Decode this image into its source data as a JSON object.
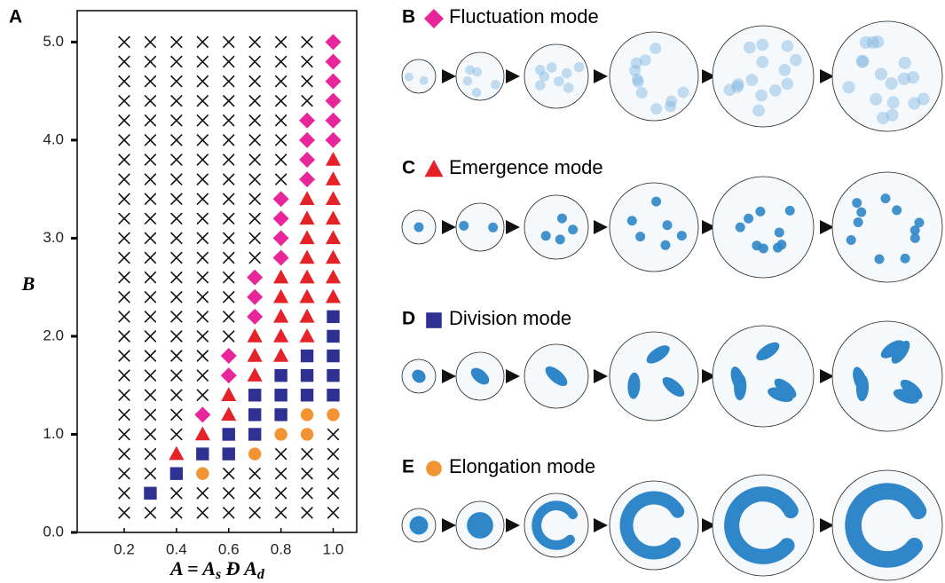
{
  "chart_data": {
    "type": "scatter",
    "panel_label": "A",
    "xlabel": [
      "A = A",
      "s",
      " Đ A",
      "d"
    ],
    "ylabel": "B",
    "xlim": [
      0.02,
      1.09
    ],
    "ylim": [
      0,
      5.32
    ],
    "xticks": [
      0.2,
      0.4,
      0.6,
      0.8,
      {
        "value": 1,
        "label": "1.0"
      }
    ],
    "yticks": [
      {
        "value": 0,
        "label": "0.0"
      },
      {
        "value": 1,
        "label": "1.0"
      },
      {
        "value": 2,
        "label": "2.0"
      },
      {
        "value": 3,
        "label": "3.0"
      },
      {
        "value": 4,
        "label": "4.0"
      },
      {
        "value": 5,
        "label": "5.0"
      }
    ],
    "series": [
      {
        "name": "Fluctuation mode",
        "marker": "diamond",
        "color": "#e8259a",
        "points": [
          [
            1.0,
            5.0
          ],
          [
            1.0,
            4.8
          ],
          [
            1.0,
            4.6
          ],
          [
            1.0,
            4.4
          ],
          [
            1.0,
            4.2
          ],
          [
            1.0,
            4.0
          ],
          [
            0.9,
            4.2
          ],
          [
            0.9,
            4.0
          ],
          [
            0.9,
            3.8
          ],
          [
            0.9,
            3.6
          ],
          [
            0.8,
            3.4
          ],
          [
            0.8,
            3.2
          ],
          [
            0.8,
            3.0
          ],
          [
            0.8,
            2.8
          ],
          [
            0.7,
            2.6
          ],
          [
            0.7,
            2.4
          ],
          [
            0.7,
            2.2
          ],
          [
            0.6,
            1.8
          ],
          [
            0.6,
            1.6
          ],
          [
            0.5,
            1.2
          ]
        ]
      },
      {
        "name": "Emergence mode",
        "marker": "triangle",
        "color": "#e52228",
        "points": [
          [
            1.0,
            3.8
          ],
          [
            1.0,
            3.6
          ],
          [
            1.0,
            3.4
          ],
          [
            1.0,
            3.2
          ],
          [
            1.0,
            3.0
          ],
          [
            1.0,
            2.8
          ],
          [
            1.0,
            2.6
          ],
          [
            1.0,
            2.4
          ],
          [
            0.9,
            3.4
          ],
          [
            0.9,
            3.2
          ],
          [
            0.9,
            3.0
          ],
          [
            0.9,
            2.8
          ],
          [
            0.9,
            2.6
          ],
          [
            0.9,
            2.4
          ],
          [
            0.9,
            2.2
          ],
          [
            0.9,
            2.0
          ],
          [
            0.8,
            2.6
          ],
          [
            0.8,
            2.4
          ],
          [
            0.8,
            2.2
          ],
          [
            0.8,
            2.0
          ],
          [
            0.8,
            1.8
          ],
          [
            0.7,
            2.0
          ],
          [
            0.7,
            1.8
          ],
          [
            0.7,
            1.6
          ],
          [
            0.6,
            1.4
          ],
          [
            0.6,
            1.2
          ],
          [
            0.5,
            1.0
          ],
          [
            0.4,
            0.8
          ]
        ]
      },
      {
        "name": "Division mode",
        "marker": "square",
        "color": "#2e3192",
        "points": [
          [
            1.0,
            2.2
          ],
          [
            1.0,
            2.0
          ],
          [
            1.0,
            1.8
          ],
          [
            1.0,
            1.6
          ],
          [
            1.0,
            1.4
          ],
          [
            0.9,
            1.8
          ],
          [
            0.9,
            1.6
          ],
          [
            0.9,
            1.4
          ],
          [
            0.8,
            1.6
          ],
          [
            0.8,
            1.4
          ],
          [
            0.8,
            1.2
          ],
          [
            0.7,
            1.4
          ],
          [
            0.7,
            1.2
          ],
          [
            0.7,
            1.0
          ],
          [
            0.6,
            1.0
          ],
          [
            0.6,
            0.8
          ],
          [
            0.5,
            0.8
          ],
          [
            0.4,
            0.6
          ],
          [
            0.3,
            0.4
          ]
        ]
      },
      {
        "name": "Elongation mode",
        "marker": "circle",
        "color": "#f39433",
        "points": [
          [
            1.0,
            1.2
          ],
          [
            0.9,
            1.2
          ],
          [
            0.9,
            1.0
          ],
          [
            0.8,
            1.0
          ],
          [
            0.7,
            0.8
          ],
          [
            0.5,
            0.6
          ]
        ]
      },
      {
        "marker": "x",
        "color": "#111111",
        "points": [
          [
            0.2,
            0.2
          ],
          [
            0.2,
            0.4
          ],
          [
            0.2,
            0.6
          ],
          [
            0.2,
            0.8
          ],
          [
            0.2,
            1.0
          ],
          [
            0.2,
            1.2
          ],
          [
            0.2,
            1.4
          ],
          [
            0.2,
            1.6
          ],
          [
            0.2,
            1.8
          ],
          [
            0.2,
            2.0
          ],
          [
            0.2,
            2.2
          ],
          [
            0.2,
            2.4
          ],
          [
            0.2,
            2.6
          ],
          [
            0.2,
            2.8
          ],
          [
            0.2,
            3.0
          ],
          [
            0.2,
            3.2
          ],
          [
            0.2,
            3.4
          ],
          [
            0.2,
            3.6
          ],
          [
            0.2,
            3.8
          ],
          [
            0.2,
            4.0
          ],
          [
            0.2,
            4.2
          ],
          [
            0.2,
            4.4
          ],
          [
            0.2,
            4.6
          ],
          [
            0.2,
            4.8
          ],
          [
            0.2,
            5.0
          ],
          [
            0.3,
            0.2
          ],
          [
            0.3,
            0.6
          ],
          [
            0.3,
            0.8
          ],
          [
            0.3,
            1.0
          ],
          [
            0.3,
            1.2
          ],
          [
            0.3,
            1.4
          ],
          [
            0.3,
            1.6
          ],
          [
            0.3,
            1.8
          ],
          [
            0.3,
            2.0
          ],
          [
            0.3,
            2.2
          ],
          [
            0.3,
            2.4
          ],
          [
            0.3,
            2.6
          ],
          [
            0.3,
            2.8
          ],
          [
            0.3,
            3.0
          ],
          [
            0.3,
            3.2
          ],
          [
            0.3,
            3.4
          ],
          [
            0.3,
            3.6
          ],
          [
            0.3,
            3.8
          ],
          [
            0.3,
            4.0
          ],
          [
            0.3,
            4.2
          ],
          [
            0.3,
            4.4
          ],
          [
            0.3,
            4.6
          ],
          [
            0.3,
            4.8
          ],
          [
            0.3,
            5.0
          ],
          [
            0.4,
            0.2
          ],
          [
            0.4,
            0.4
          ],
          [
            0.4,
            1.0
          ],
          [
            0.4,
            1.2
          ],
          [
            0.4,
            1.4
          ],
          [
            0.4,
            1.6
          ],
          [
            0.4,
            1.8
          ],
          [
            0.4,
            2.0
          ],
          [
            0.4,
            2.2
          ],
          [
            0.4,
            2.4
          ],
          [
            0.4,
            2.6
          ],
          [
            0.4,
            2.8
          ],
          [
            0.4,
            3.0
          ],
          [
            0.4,
            3.2
          ],
          [
            0.4,
            3.4
          ],
          [
            0.4,
            3.6
          ],
          [
            0.4,
            3.8
          ],
          [
            0.4,
            4.0
          ],
          [
            0.4,
            4.2
          ],
          [
            0.4,
            4.4
          ],
          [
            0.4,
            4.6
          ],
          [
            0.4,
            4.8
          ],
          [
            0.4,
            5.0
          ],
          [
            0.5,
            0.2
          ],
          [
            0.5,
            0.4
          ],
          [
            0.5,
            1.4
          ],
          [
            0.5,
            1.6
          ],
          [
            0.5,
            1.8
          ],
          [
            0.5,
            2.0
          ],
          [
            0.5,
            2.2
          ],
          [
            0.5,
            2.4
          ],
          [
            0.5,
            2.6
          ],
          [
            0.5,
            2.8
          ],
          [
            0.5,
            3.0
          ],
          [
            0.5,
            3.2
          ],
          [
            0.5,
            3.4
          ],
          [
            0.5,
            3.6
          ],
          [
            0.5,
            3.8
          ],
          [
            0.5,
            4.0
          ],
          [
            0.5,
            4.2
          ],
          [
            0.5,
            4.4
          ],
          [
            0.5,
            4.6
          ],
          [
            0.5,
            4.8
          ],
          [
            0.5,
            5.0
          ],
          [
            0.6,
            0.2
          ],
          [
            0.6,
            0.4
          ],
          [
            0.6,
            0.6
          ],
          [
            0.6,
            2.0
          ],
          [
            0.6,
            2.2
          ],
          [
            0.6,
            2.4
          ],
          [
            0.6,
            2.6
          ],
          [
            0.6,
            2.8
          ],
          [
            0.6,
            3.0
          ],
          [
            0.6,
            3.2
          ],
          [
            0.6,
            3.4
          ],
          [
            0.6,
            3.6
          ],
          [
            0.6,
            3.8
          ],
          [
            0.6,
            4.0
          ],
          [
            0.6,
            4.2
          ],
          [
            0.6,
            4.4
          ],
          [
            0.6,
            4.6
          ],
          [
            0.6,
            4.8
          ],
          [
            0.6,
            5.0
          ],
          [
            0.7,
            0.2
          ],
          [
            0.7,
            0.4
          ],
          [
            0.7,
            0.6
          ],
          [
            0.7,
            2.8
          ],
          [
            0.7,
            3.0
          ],
          [
            0.7,
            3.2
          ],
          [
            0.7,
            3.4
          ],
          [
            0.7,
            3.6
          ],
          [
            0.7,
            3.8
          ],
          [
            0.7,
            4.0
          ],
          [
            0.7,
            4.2
          ],
          [
            0.7,
            4.4
          ],
          [
            0.7,
            4.6
          ],
          [
            0.7,
            4.8
          ],
          [
            0.7,
            5.0
          ],
          [
            0.8,
            0.2
          ],
          [
            0.8,
            0.4
          ],
          [
            0.8,
            0.6
          ],
          [
            0.8,
            0.8
          ],
          [
            0.8,
            3.6
          ],
          [
            0.8,
            3.8
          ],
          [
            0.8,
            4.0
          ],
          [
            0.8,
            4.2
          ],
          [
            0.8,
            4.4
          ],
          [
            0.8,
            4.6
          ],
          [
            0.8,
            4.8
          ],
          [
            0.8,
            5.0
          ],
          [
            0.9,
            0.2
          ],
          [
            0.9,
            0.4
          ],
          [
            0.9,
            0.6
          ],
          [
            0.9,
            0.8
          ],
          [
            0.9,
            4.4
          ],
          [
            0.9,
            4.6
          ],
          [
            0.9,
            4.8
          ],
          [
            0.9,
            5.0
          ],
          [
            1.0,
            0.2
          ],
          [
            1.0,
            0.4
          ],
          [
            1.0,
            0.6
          ],
          [
            1.0,
            0.8
          ],
          [
            1.0,
            1.0
          ]
        ]
      }
    ]
  },
  "panel_labels": [
    "B",
    "C",
    "D",
    "E"
  ]
}
